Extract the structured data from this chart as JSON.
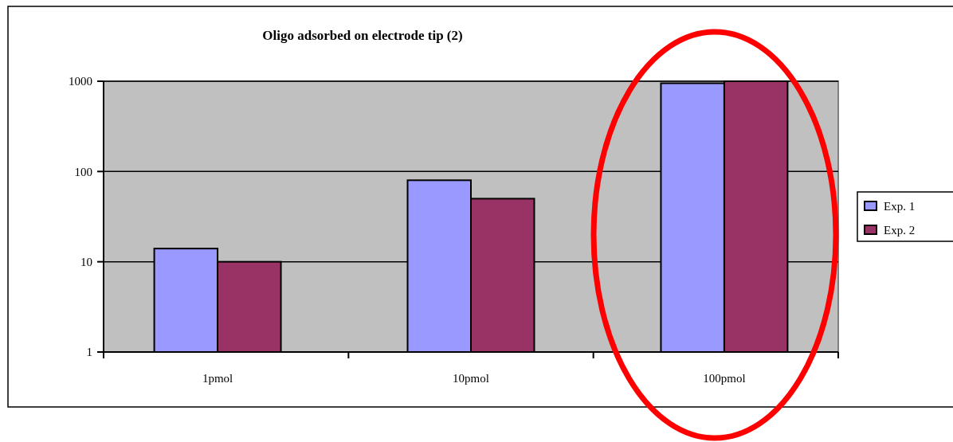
{
  "chart_data": {
    "type": "bar",
    "title": "Oligo adsorbed on electrode tip (2)",
    "categories": [
      "1pmol",
      "10pmol",
      "100pmol"
    ],
    "series": [
      {
        "name": "Exp. 1",
        "color": "#9999ff",
        "values": [
          14,
          80,
          950
        ]
      },
      {
        "name": "Exp. 2",
        "color": "#993366",
        "values": [
          10,
          50,
          1000
        ]
      }
    ],
    "log": "y",
    "ylim": [
      1,
      1000
    ],
    "yticks": [
      1,
      10,
      100,
      1000
    ],
    "grid": "y",
    "legend": "right"
  }
}
